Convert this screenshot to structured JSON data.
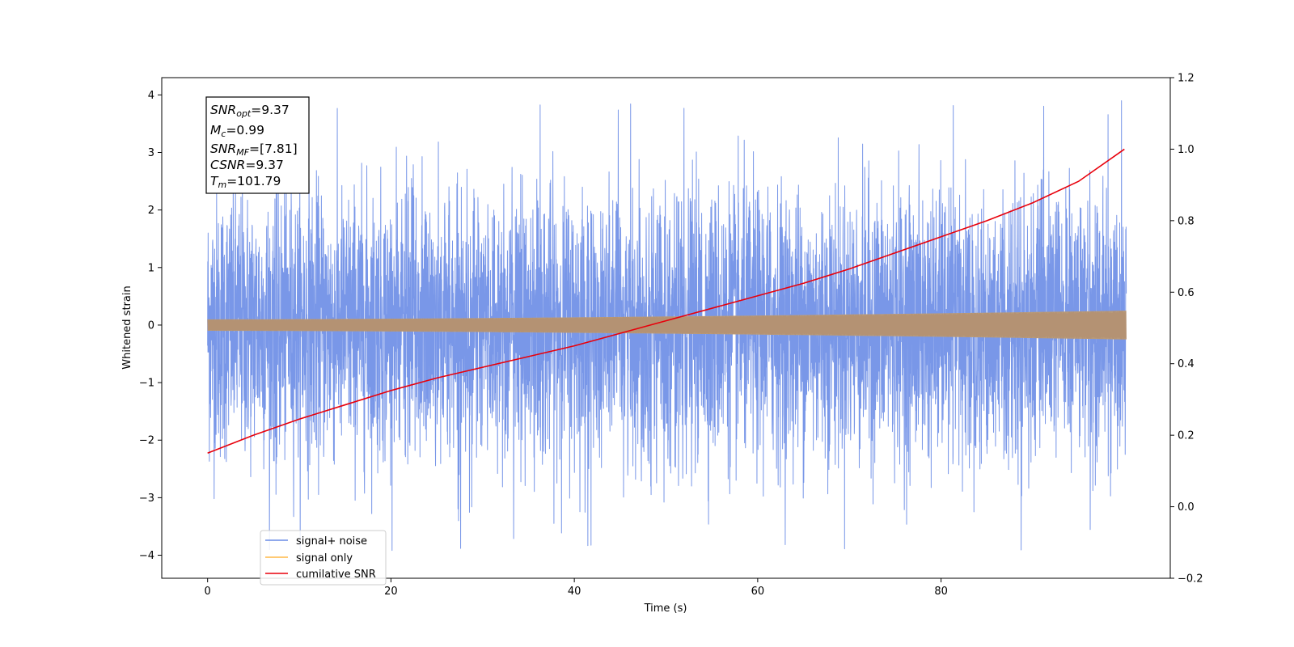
{
  "chart_data": {
    "type": "line",
    "xlabel": "Time (s)",
    "ylabel": "Whitened strain",
    "xlim": [
      -5,
      105
    ],
    "ylim": [
      -4.4,
      4.3
    ],
    "y2lim": [
      -0.2,
      1.2
    ],
    "x_ticks": [
      0,
      20,
      40,
      60,
      80
    ],
    "y_ticks": [
      -4,
      -3,
      -2,
      -1,
      0,
      1,
      2,
      3,
      4
    ],
    "y2_ticks": [
      -0.2,
      0.0,
      0.2,
      0.4,
      0.6,
      0.8,
      1.0,
      1.2
    ],
    "x_tick_labels": [
      "0",
      "20",
      "40",
      "60",
      "80"
    ],
    "y_tick_labels": [
      "4",
      "3",
      "2",
      "1",
      "0",
      "−1",
      "−2",
      "−3",
      "−4"
    ],
    "y2_tick_labels": [
      "1.2",
      "1.0",
      "0.8",
      "0.6",
      "0.4",
      "0.2",
      "0.0",
      "−0.2"
    ],
    "grid": false,
    "legend_placement": "lower-left",
    "duration": 100.2,
    "series": [
      {
        "name": "signal+ noise",
        "axis": "left",
        "color": "#6a8ce6",
        "typical_amplitude": 2.3,
        "peak_range": [
          -4.0,
          3.9
        ]
      },
      {
        "name": "signal only",
        "axis": "left",
        "color": "#ffb846",
        "amplitude_start": 0.1,
        "amplitude_end": 0.25
      },
      {
        "name": "cumilative SNR",
        "axis": "right",
        "color": "#e8000b",
        "x": [
          0,
          5,
          10,
          15,
          20,
          25,
          30,
          35,
          40,
          45,
          50,
          55,
          60,
          65,
          70,
          75,
          80,
          85,
          90,
          95,
          100
        ],
        "y": [
          0.15,
          0.2,
          0.245,
          0.285,
          0.325,
          0.36,
          0.39,
          0.42,
          0.45,
          0.485,
          0.52,
          0.555,
          0.59,
          0.625,
          0.665,
          0.71,
          0.755,
          0.8,
          0.85,
          0.91,
          1.0
        ]
      }
    ],
    "annotation": {
      "snr_opt": {
        "base": "SNR",
        "sub": "opt",
        "value": "=9.37"
      },
      "mc": {
        "base": "M",
        "sub": "c",
        "value": "=0.99"
      },
      "snr_mf": {
        "base": "SNR",
        "sub": "MF",
        "value": "=[7.81]"
      },
      "csnr": {
        "base": "CSNR",
        "sub": "",
        "value": "=9.37"
      },
      "tm": {
        "base": "T",
        "sub": "m",
        "value": "=101.79"
      }
    }
  }
}
